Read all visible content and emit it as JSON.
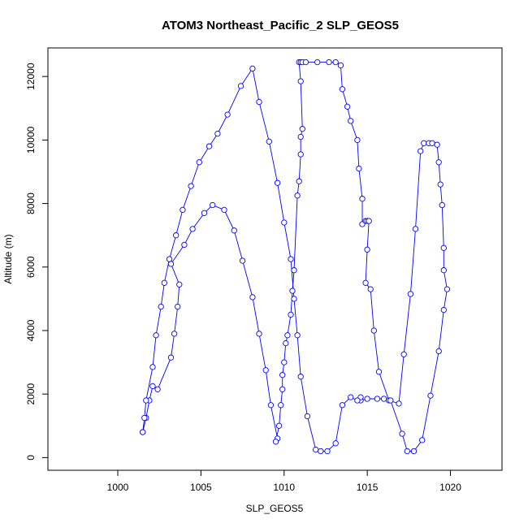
{
  "chart_data": {
    "type": "line",
    "title": "ATOM3 Northeast_Pacific_2 SLP_GEOS5",
    "xlabel": "SLP_GEOS5",
    "ylabel": "Altitude (m)",
    "xlim": [
      995.8,
      1023.1
    ],
    "ylim": [
      -400,
      12900
    ],
    "x_ticks": [
      1000,
      1005,
      1010,
      1015,
      1020
    ],
    "y_ticks": [
      0,
      2000,
      4000,
      6000,
      8000,
      10000,
      12000
    ],
    "x_tick_labels": [
      "1000",
      "1005",
      "1010",
      "1015",
      "1020"
    ],
    "y_tick_labels": [
      "0",
      "2000",
      "4000",
      "6000",
      "8000",
      "10000",
      "12000"
    ],
    "grid": false,
    "line_color": "#0000ff",
    "marker": "open-circle",
    "series": [
      {
        "points": [
          [
            1001.5,
            800
          ],
          [
            1001.7,
            1250
          ],
          [
            1001.9,
            1800
          ],
          [
            1002.1,
            2250
          ],
          [
            1002.4,
            2150
          ],
          [
            1003.2,
            3150
          ],
          [
            1003.4,
            3900
          ],
          [
            1003.6,
            4750
          ],
          [
            1003.7,
            5450
          ],
          [
            1003.2,
            6100
          ],
          [
            1004.0,
            6700
          ],
          [
            1004.5,
            7200
          ],
          [
            1005.2,
            7700
          ],
          [
            1005.7,
            7950
          ],
          [
            1006.4,
            7800
          ],
          [
            1007.0,
            7150
          ],
          [
            1007.5,
            6200
          ],
          [
            1008.1,
            5050
          ],
          [
            1008.5,
            3900
          ],
          [
            1008.9,
            2750
          ],
          [
            1009.2,
            1650
          ],
          [
            1009.6,
            600
          ],
          [
            1009.5,
            500
          ],
          [
            1009.7,
            1000
          ],
          [
            1009.8,
            1650
          ],
          [
            1009.9,
            2150
          ],
          [
            1009.9,
            2600
          ],
          [
            1010.0,
            3000
          ],
          [
            1010.1,
            3600
          ],
          [
            1010.2,
            3850
          ],
          [
            1010.4,
            4500
          ],
          [
            1010.5,
            5250
          ],
          [
            1010.6,
            5900
          ],
          [
            1010.8,
            8250
          ],
          [
            1010.9,
            8700
          ],
          [
            1011.0,
            9550
          ],
          [
            1011.0,
            10100
          ],
          [
            1011.1,
            10350
          ],
          [
            1011.0,
            11850
          ],
          [
            1010.9,
            12450
          ],
          [
            1011.0,
            12450
          ],
          [
            1011.1,
            12450
          ],
          [
            1011.3,
            12450
          ],
          [
            1012.0,
            12450
          ],
          [
            1012.7,
            12450
          ],
          [
            1013.1,
            12450
          ],
          [
            1013.4,
            12350
          ],
          [
            1013.5,
            11600
          ],
          [
            1013.8,
            11050
          ],
          [
            1014.0,
            10600
          ],
          [
            1014.4,
            10000
          ],
          [
            1014.5,
            9100
          ],
          [
            1014.7,
            8150
          ],
          [
            1014.7,
            7350
          ],
          [
            1014.9,
            7450
          ],
          [
            1015.0,
            7450
          ],
          [
            1015.1,
            7450
          ],
          [
            1015.0,
            6550
          ],
          [
            1014.9,
            5500
          ],
          [
            1015.2,
            5300
          ],
          [
            1015.4,
            4000
          ],
          [
            1015.7,
            2700
          ],
          [
            1016.3,
            1800
          ],
          [
            1016.9,
            1700
          ],
          [
            1017.2,
            3250
          ],
          [
            1017.6,
            5150
          ],
          [
            1017.9,
            7200
          ],
          [
            1018.2,
            9650
          ],
          [
            1018.4,
            9900
          ],
          [
            1018.7,
            9900
          ],
          [
            1018.9,
            9900
          ],
          [
            1019.2,
            9850
          ],
          [
            1019.3,
            9300
          ],
          [
            1019.4,
            8600
          ],
          [
            1019.5,
            7950
          ],
          [
            1019.6,
            6600
          ],
          [
            1019.6,
            5900
          ],
          [
            1019.8,
            5300
          ],
          [
            1019.6,
            4650
          ],
          [
            1019.3,
            3350
          ],
          [
            1018.8,
            1950
          ],
          [
            1018.3,
            550
          ],
          [
            1017.8,
            200
          ],
          [
            1017.4,
            200
          ],
          [
            1017.1,
            750
          ],
          [
            1016.4,
            1800
          ],
          [
            1016.0,
            1850
          ],
          [
            1015.6,
            1850
          ],
          [
            1015.0,
            1850
          ],
          [
            1014.6,
            1800
          ],
          [
            1014.6,
            1900
          ],
          [
            1014.4,
            1800
          ],
          [
            1014.0,
            1900
          ],
          [
            1013.5,
            1650
          ],
          [
            1013.1,
            450
          ],
          [
            1012.6,
            200
          ],
          [
            1012.2,
            200
          ],
          [
            1011.9,
            250
          ],
          [
            1011.4,
            1300
          ],
          [
            1011.0,
            2550
          ],
          [
            1010.8,
            3850
          ],
          [
            1010.6,
            5000
          ],
          [
            1010.4,
            6250
          ],
          [
            1010.0,
            7400
          ],
          [
            1009.6,
            8650
          ],
          [
            1009.1,
            9950
          ],
          [
            1008.5,
            11200
          ],
          [
            1008.1,
            12250
          ],
          [
            1007.4,
            11700
          ],
          [
            1006.6,
            10800
          ],
          [
            1006.0,
            10200
          ],
          [
            1005.5,
            9800
          ],
          [
            1004.9,
            9300
          ],
          [
            1004.4,
            8550
          ],
          [
            1003.9,
            7800
          ],
          [
            1003.5,
            7000
          ],
          [
            1003.1,
            6250
          ],
          [
            1002.8,
            5500
          ],
          [
            1002.6,
            4750
          ],
          [
            1002.3,
            3850
          ],
          [
            1002.1,
            2850
          ],
          [
            1001.7,
            1800
          ],
          [
            1001.6,
            1250
          ],
          [
            1001.5,
            800
          ]
        ]
      }
    ]
  }
}
